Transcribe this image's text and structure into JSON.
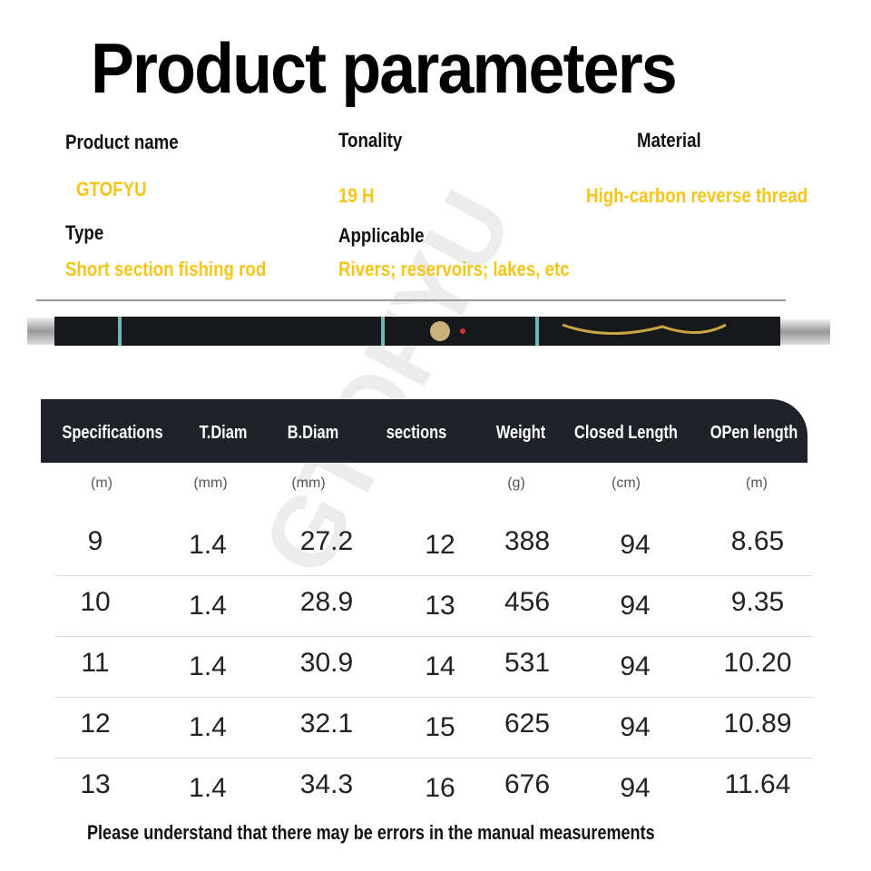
{
  "title": "Product parameters",
  "watermark": "GTOFYU",
  "params": [
    {
      "label": "Product name",
      "value": "GTOFYU"
    },
    {
      "label": "Tonality",
      "value": "19 H"
    },
    {
      "label": "Material",
      "value": "High-carbon reverse thread"
    },
    {
      "label": "Type",
      "value": "Short section fishing rod"
    },
    {
      "label": "Applicable",
      "value": "Rivers; reservoirs; lakes, etc"
    }
  ],
  "table": {
    "headers": [
      "Specifications",
      "T.Diam",
      "B.Diam",
      "sections",
      "Weight",
      "Closed Length",
      "OPen length"
    ],
    "units": [
      "(m)",
      "(mm)",
      "(mm)",
      "",
      "(g)",
      "(cm)",
      "(m)"
    ],
    "rows": [
      [
        "9",
        "1.4",
        "27.2",
        "12",
        "388",
        "94",
        "8.65"
      ],
      [
        "10",
        "1.4",
        "28.9",
        "13",
        "456",
        "94",
        "9.35"
      ],
      [
        "11",
        "1.4",
        "30.9",
        "14",
        "531",
        "94",
        "10.20"
      ],
      [
        "12",
        "1.4",
        "32.1",
        "15",
        "625",
        "94",
        "10.89"
      ],
      [
        "13",
        "1.4",
        "34.3",
        "16",
        "676",
        "94",
        "11.64"
      ]
    ]
  },
  "footer": "Please understand that there may be errors in the manual measurements",
  "colors": {
    "accent": "#f5c518",
    "header_bg": "#1f2229"
  }
}
